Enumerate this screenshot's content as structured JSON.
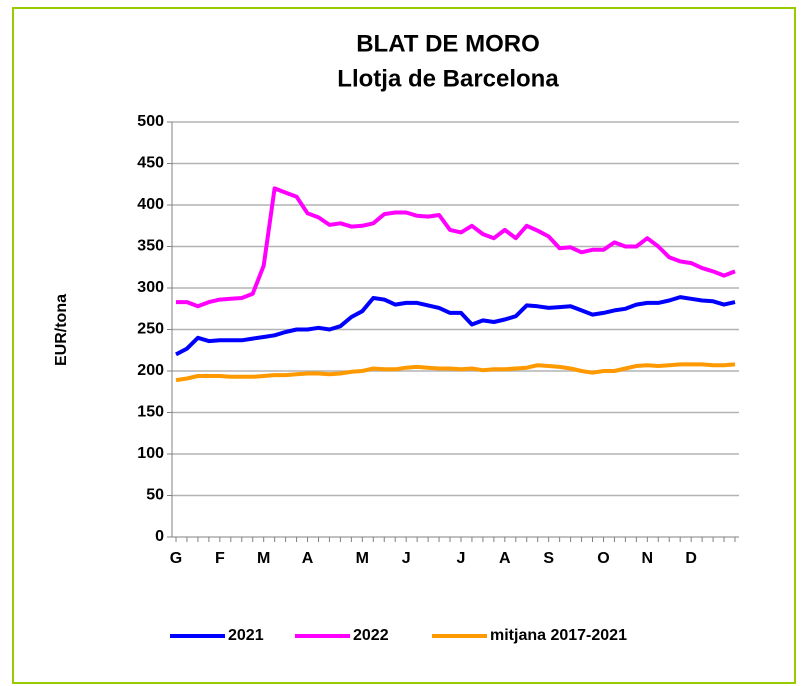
{
  "chart_data": {
    "type": "line",
    "title": [
      "BLAT DE MORO",
      "Llotja de Barcelona"
    ],
    "y_label": "EUR/tona",
    "categories": [
      "G",
      null,
      null,
      null,
      "F",
      null,
      null,
      null,
      "M",
      null,
      null,
      null,
      "A",
      null,
      null,
      null,
      null,
      "M",
      null,
      null,
      null,
      "J",
      null,
      null,
      null,
      null,
      "J",
      null,
      null,
      null,
      "A",
      null,
      null,
      null,
      "S",
      null,
      null,
      null,
      null,
      "O",
      null,
      null,
      null,
      "N",
      null,
      null,
      null,
      "D",
      null,
      null,
      null,
      null
    ],
    "series": [
      {
        "name": "2021",
        "color": "#0000ff",
        "values": [
          220,
          227,
          240,
          236,
          237,
          237,
          237,
          239,
          241,
          243,
          247,
          250,
          250,
          252,
          250,
          254,
          265,
          272,
          288,
          286,
          280,
          282,
          282,
          279,
          276,
          270,
          270,
          256,
          261,
          259,
          262,
          266,
          279,
          278,
          276,
          277,
          278,
          273,
          268,
          270,
          273,
          275,
          280,
          282,
          282,
          285,
          289,
          287,
          285,
          284,
          280,
          283
        ]
      },
      {
        "name": "2022",
        "color": "#ff00ff",
        "values": [
          283,
          283,
          278,
          283,
          286,
          287,
          288,
          293,
          327,
          420,
          415,
          410,
          390,
          385,
          376,
          378,
          374,
          375,
          378,
          389,
          391,
          391,
          387,
          386,
          388,
          370,
          367,
          375,
          365,
          360,
          370,
          360,
          375,
          369,
          362,
          348,
          349,
          343,
          346,
          346,
          355,
          350,
          350,
          360,
          350,
          337,
          332,
          330,
          324,
          320,
          315,
          320
        ]
      },
      {
        "name": "mitjana 2017-2021",
        "color": "#ff9900",
        "values": [
          189,
          191,
          194,
          194,
          194,
          193,
          193,
          193,
          194,
          195,
          195,
          196,
          197,
          197,
          196,
          197,
          199,
          200,
          203,
          202,
          202,
          204,
          205,
          204,
          203,
          203,
          202,
          203,
          201,
          202,
          202,
          203,
          204,
          207,
          206,
          205,
          203,
          200,
          198,
          200,
          200,
          203,
          206,
          207,
          206,
          207,
          208,
          208,
          208,
          207,
          207,
          208
        ]
      }
    ],
    "ylim": [
      0,
      500
    ],
    "yticks": [
      0,
      50,
      100,
      150,
      200,
      250,
      300,
      350,
      400,
      450,
      500
    ],
    "grid": true,
    "legend": "bottom"
  }
}
